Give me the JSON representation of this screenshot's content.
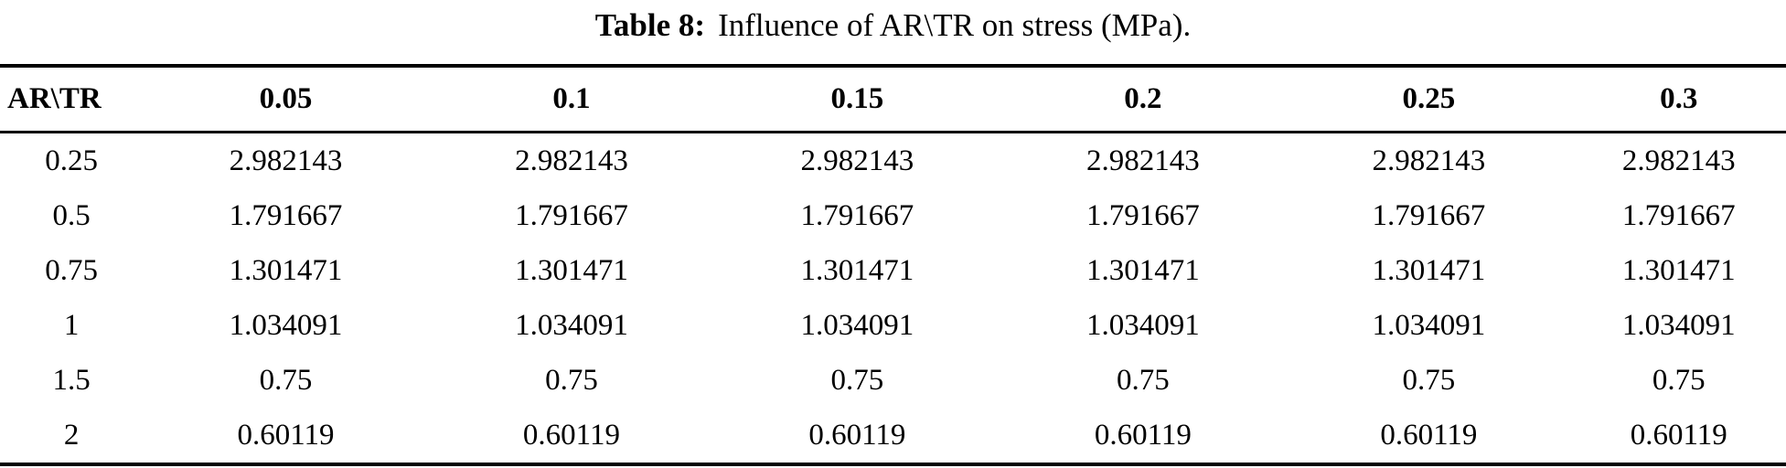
{
  "caption": {
    "label": "Table 8:",
    "text": "Influence of AR\\TR on stress (MPa)."
  },
  "table": {
    "columns": [
      "AR\\TR",
      "0.05",
      "0.1",
      "0.15",
      "0.2",
      "0.25",
      "0.3"
    ],
    "rows": [
      [
        "0.25",
        "2.982143",
        "2.982143",
        "2.982143",
        "2.982143",
        "2.982143",
        "2.982143"
      ],
      [
        "0.5",
        "1.791667",
        "1.791667",
        "1.791667",
        "1.791667",
        "1.791667",
        "1.791667"
      ],
      [
        "0.75",
        "1.301471",
        "1.301471",
        "1.301471",
        "1.301471",
        "1.301471",
        "1.301471"
      ],
      [
        "1",
        "1.034091",
        "1.034091",
        "1.034091",
        "1.034091",
        "1.034091",
        "1.034091"
      ],
      [
        "1.5",
        "0.75",
        "0.75",
        "0.75",
        "0.75",
        "0.75",
        "0.75"
      ],
      [
        "2",
        "0.60119",
        "0.60119",
        "0.60119",
        "0.60119",
        "0.60119",
        "0.60119"
      ]
    ]
  }
}
